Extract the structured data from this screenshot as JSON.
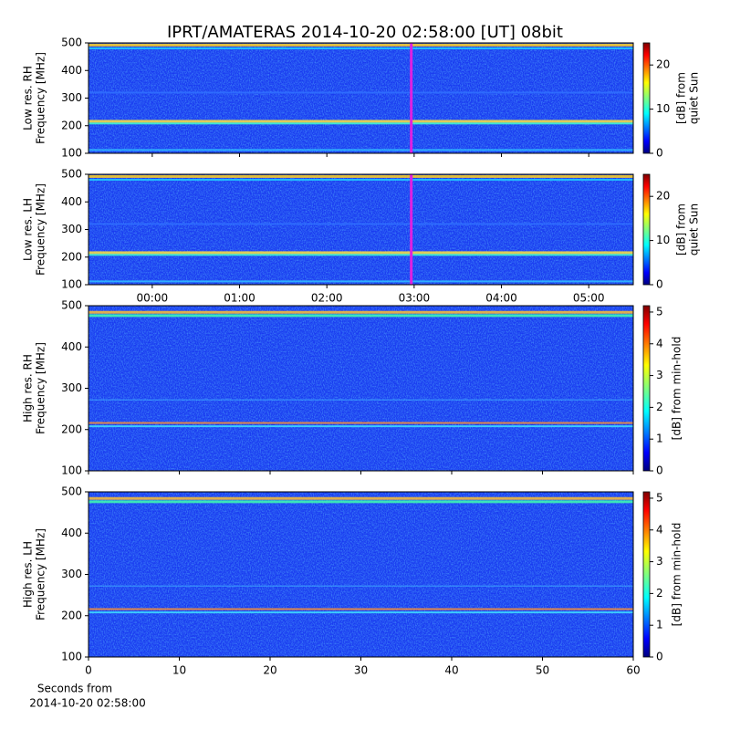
{
  "chart_data": [
    {
      "type": "heatmap",
      "title": "IPRT/AMATERAS 2014-10-20 02:58:00 [UT]   08bit",
      "ylabel": [
        "Low res. RH",
        "Frequency [MHz]"
      ],
      "ylim": [
        100,
        500
      ],
      "yticks": [
        100,
        200,
        300,
        400,
        500
      ],
      "xlim": [
        -0.73,
        5.51
      ],
      "xticks": [
        0,
        1,
        2,
        3,
        4,
        5
      ],
      "show_xtick_labels": false,
      "marker_x": 2.967,
      "marker_color": "#e020e0",
      "colorbar": {
        "label": [
          "[dB] from",
          "quiet Sun"
        ],
        "lim": [
          0,
          25
        ],
        "ticks": [
          0,
          10,
          20
        ]
      }
    },
    {
      "type": "heatmap",
      "ylabel": [
        "Low res. LH",
        "Frequency [MHz]"
      ],
      "ylim": [
        100,
        500
      ],
      "yticks": [
        100,
        200,
        300,
        400,
        500
      ],
      "xlim": [
        -0.73,
        5.51
      ],
      "xticks": [
        {
          "value": 0,
          "label": "00:00"
        },
        {
          "value": 1,
          "label": "01:00"
        },
        {
          "value": 2,
          "label": "02:00"
        },
        {
          "value": 3,
          "label": "03:00"
        },
        {
          "value": 4,
          "label": "04:00"
        },
        {
          "value": 5,
          "label": "05:00"
        }
      ],
      "show_xtick_labels": true,
      "marker_x": 2.967,
      "marker_color": "#e020e0",
      "colorbar": {
        "label": [
          "[dB] from",
          "quiet Sun"
        ],
        "lim": [
          0,
          25
        ],
        "ticks": [
          0,
          10,
          20
        ]
      }
    },
    {
      "type": "heatmap",
      "ylabel": [
        "High res. RH",
        "Frequency [MHz]"
      ],
      "ylim": [
        100,
        500
      ],
      "yticks": [
        100,
        200,
        300,
        400,
        500
      ],
      "xlim": [
        0,
        60
      ],
      "xticks": [
        0,
        10,
        20,
        30,
        40,
        50,
        60
      ],
      "show_xtick_labels": false,
      "colorbar": {
        "label": [
          "[dB] from min-hold"
        ],
        "lim": [
          0,
          5.2
        ],
        "ticks": [
          0,
          1,
          2,
          3,
          4,
          5
        ]
      }
    },
    {
      "type": "heatmap",
      "ylabel": [
        "High res. LH",
        "Frequency [MHz]"
      ],
      "xlabel": [
        "Seconds from",
        "2014-10-20 02:58:00"
      ],
      "ylim": [
        100,
        500
      ],
      "yticks": [
        100,
        200,
        300,
        400,
        500
      ],
      "xlim": [
        0,
        60
      ],
      "xticks": [
        0,
        10,
        20,
        30,
        40,
        50,
        60
      ],
      "show_xtick_labels": true,
      "colorbar": {
        "label": [
          "[dB] from min-hold"
        ],
        "lim": [
          0,
          5.2
        ],
        "ticks": [
          0,
          1,
          2,
          3,
          4,
          5
        ]
      }
    }
  ]
}
